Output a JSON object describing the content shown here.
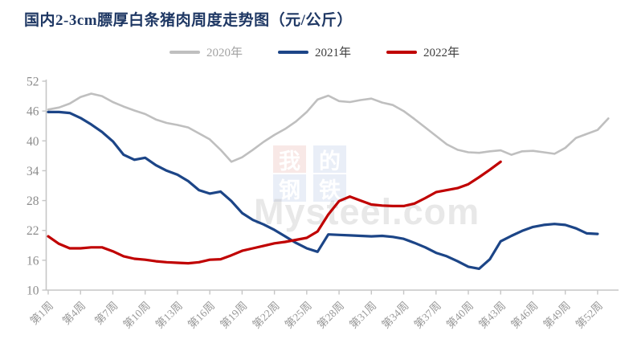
{
  "title": "国内2-3cm膘厚白条猪肉周度走势图（元/公斤）",
  "watermark": {
    "chars": [
      "我",
      "的",
      "钢",
      "铁"
    ],
    "site": "Mysteel.com"
  },
  "colors": {
    "title": "#1f3864",
    "axis": "#c6c6c6",
    "y_label": "#8c8c8c",
    "x_label": "#999999",
    "legend_label_2020": "#a3a3a3",
    "legend_label_dark": "#3f3f3f"
  },
  "chart_data": {
    "type": "line",
    "title": "国内2-3cm膘厚白条猪肉周度走势图（元/公斤）",
    "unit": "元/公斤",
    "grid": false,
    "legend_position": "top-center",
    "x_axis": {
      "label_unit": "周",
      "tick_weeks": [
        1,
        4,
        7,
        10,
        13,
        16,
        19,
        22,
        25,
        28,
        31,
        34,
        37,
        40,
        43,
        46,
        49,
        52
      ],
      "tick_labels": [
        "第1周",
        "第4周",
        "第7周",
        "第10周",
        "第13周",
        "第16周",
        "第19周",
        "第22周",
        "第25周",
        "第28周",
        "第31周",
        "第34周",
        "第37周",
        "第40周",
        "第43周",
        "第46周",
        "第49周",
        "第52周"
      ]
    },
    "y_axis": {
      "min": 10,
      "max": 52,
      "ticks": [
        10,
        16,
        22,
        28,
        34,
        40,
        46,
        52
      ]
    },
    "series": [
      {
        "name": "2020年",
        "color": "#bfbfbf",
        "line_width": 2.6,
        "start_week": 1,
        "values": [
          46.3,
          46.7,
          47.5,
          48.8,
          49.5,
          49.0,
          47.8,
          46.9,
          46.1,
          45.4,
          44.3,
          43.6,
          43.2,
          42.7,
          41.5,
          40.3,
          38.2,
          35.8,
          36.7,
          38.2,
          39.8,
          41.2,
          42.4,
          43.9,
          45.8,
          48.3,
          49.1,
          48.0,
          47.8,
          48.2,
          48.5,
          47.7,
          47.2,
          46.0,
          44.4,
          42.7,
          41.0,
          39.3,
          38.2,
          37.7,
          37.6,
          37.9,
          38.1,
          37.2,
          37.9,
          38.0,
          37.7,
          37.4,
          38.6,
          40.6,
          41.4,
          42.2,
          44.5
        ]
      },
      {
        "name": "2021年",
        "color": "#1c4587",
        "line_width": 3.2,
        "start_week": 1,
        "values": [
          45.8,
          45.8,
          45.6,
          44.6,
          43.3,
          41.8,
          39.9,
          37.2,
          36.2,
          36.6,
          35.1,
          34.0,
          33.2,
          31.9,
          30.1,
          29.4,
          29.8,
          27.9,
          25.5,
          24.1,
          23.2,
          22.1,
          20.8,
          19.5,
          18.4,
          17.7,
          21.2,
          21.1,
          21.0,
          20.9,
          20.8,
          20.9,
          20.7,
          20.3,
          19.5,
          18.6,
          17.5,
          16.8,
          15.8,
          14.7,
          14.3,
          16.2,
          19.8,
          20.9,
          21.9,
          22.7,
          23.1,
          23.3,
          23.1,
          22.4,
          21.4,
          21.3
        ]
      },
      {
        "name": "2022年",
        "color": "#c00000",
        "line_width": 3.2,
        "start_week": 1,
        "values": [
          20.8,
          19.3,
          18.4,
          18.4,
          18.6,
          18.6,
          17.8,
          16.8,
          16.3,
          16.1,
          15.8,
          15.6,
          15.5,
          15.4,
          15.6,
          16.1,
          16.2,
          17.0,
          17.9,
          18.4,
          18.9,
          19.4,
          19.7,
          20.1,
          20.5,
          21.8,
          25.2,
          27.9,
          28.8,
          28.0,
          27.2,
          27.0,
          26.9,
          26.9,
          27.4,
          28.5,
          29.7,
          30.1,
          30.5,
          31.3,
          32.7,
          34.2,
          35.8
        ]
      }
    ]
  }
}
